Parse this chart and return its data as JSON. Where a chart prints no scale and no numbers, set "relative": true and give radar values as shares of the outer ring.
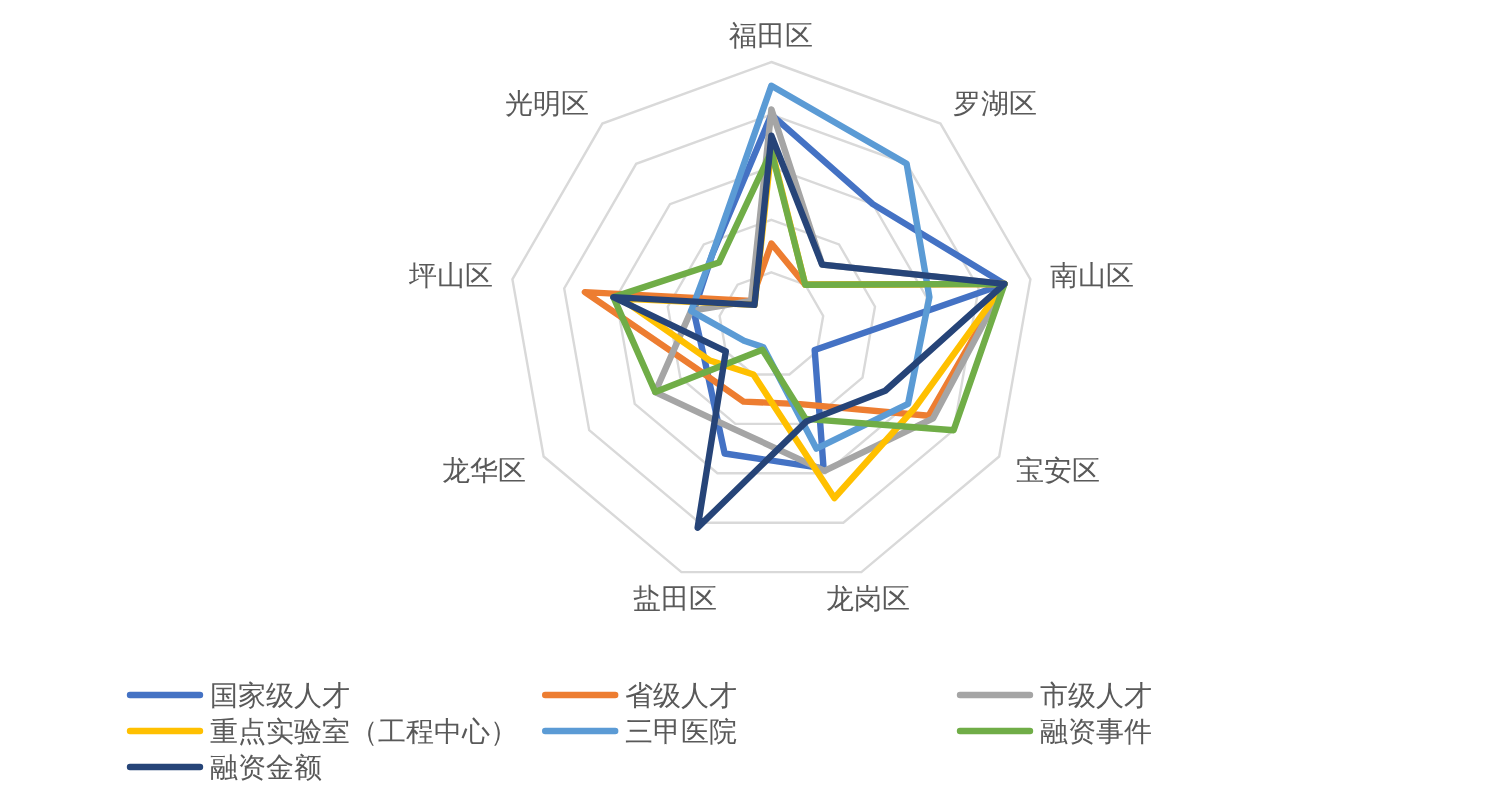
{
  "chart_data": {
    "type": "radar",
    "relative": true,
    "grid": true,
    "legend": "bottom",
    "categories": [
      "福田区",
      "罗湖区",
      "南山区",
      "宝安区",
      "龙岗区",
      "盐田区",
      "龙华区",
      "坪山区",
      "光明区"
    ],
    "series": [
      {
        "name": "国家级人才",
        "color": "#4472c4",
        "values": [
          0.8,
          0.6,
          0.9,
          0.19,
          0.58,
          0.52,
          0.29,
          0.3,
          0.35
        ]
      },
      {
        "name": "省级人才",
        "color": "#ed7d31",
        "values": [
          0.31,
          0.2,
          0.9,
          0.69,
          0.32,
          0.31,
          0.33,
          0.72,
          0.12
        ]
      },
      {
        "name": "市级人才",
        "color": "#a5a5a5",
        "values": [
          0.82,
          0.3,
          0.9,
          0.71,
          0.59,
          0.42,
          0.51,
          0.31,
          0.12
        ]
      },
      {
        "name": "重点实验室（工程中心）",
        "color": "#ffc000",
        "values": [
          0.67,
          0.2,
          0.9,
          0.63,
          0.7,
          0.2,
          0.27,
          0.58,
          0.1
        ]
      },
      {
        "name": "三甲医院",
        "color": "#5b9bd5",
        "values": [
          0.91,
          0.8,
          0.61,
          0.6,
          0.5,
          0.09,
          0.12,
          0.31,
          0.35
        ]
      },
      {
        "name": "融资事件",
        "color": "#70ad47",
        "values": [
          0.66,
          0.2,
          0.9,
          0.8,
          0.38,
          0.1,
          0.51,
          0.61,
          0.31
        ]
      },
      {
        "name": "融资金额",
        "color": "#264478",
        "values": [
          0.72,
          0.3,
          0.9,
          0.5,
          0.39,
          0.82,
          0.2,
          0.61,
          0.1
        ]
      }
    ]
  }
}
